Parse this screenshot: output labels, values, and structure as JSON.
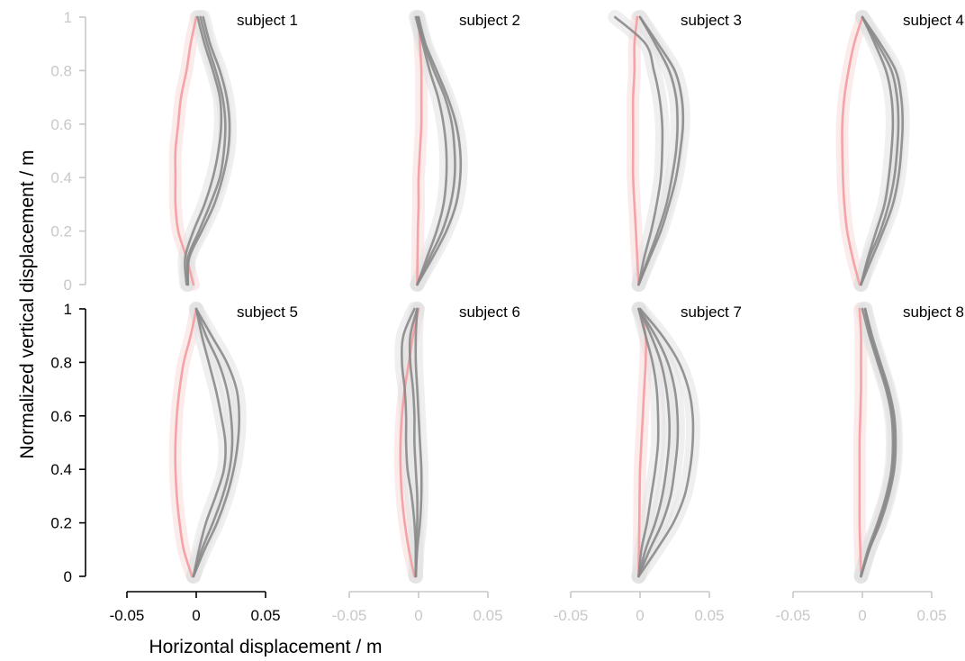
{
  "chart_data": {
    "type": "line",
    "xlabel": "Horizontal displacement / m",
    "ylabel": "Normalized vertical displacement / m",
    "xlim": [
      -0.05,
      0.05
    ],
    "ylim": [
      0,
      1
    ],
    "xticks": [
      "-0.05",
      "0",
      "0.05"
    ],
    "yticks": [
      "0",
      "0.2",
      "0.4",
      "0.6",
      "0.8",
      "1"
    ],
    "layout": "2 rows x 4 panels, shared axes",
    "colors": {
      "pink_trajectory": "#f4a3a6",
      "gray_trajectory": "#8a8a8a",
      "gray_band": "#e2e2e2",
      "pink_band": "#fbe3e3",
      "axis_dark": "#000000",
      "axis_light": "#c8c8c8"
    },
    "panels": [
      {
        "title": "subject 1",
        "pink": {
          "y": [
            0.0,
            0.1,
            0.2,
            0.3,
            0.4,
            0.5,
            0.6,
            0.7,
            0.8,
            0.9,
            1.0
          ],
          "x": [
            -0.002,
            -0.007,
            -0.013,
            -0.015,
            -0.015,
            -0.015,
            -0.013,
            -0.011,
            -0.007,
            -0.004,
            0.0
          ]
        },
        "grays": [
          {
            "y": [
              0.0,
              0.1,
              0.2,
              0.3,
              0.4,
              0.5,
              0.6,
              0.7,
              0.8,
              0.9,
              1.0
            ],
            "x": [
              -0.007,
              -0.008,
              -0.002,
              0.006,
              0.012,
              0.016,
              0.018,
              0.017,
              0.012,
              0.006,
              0.001
            ]
          },
          {
            "y": [
              0.0,
              0.1,
              0.2,
              0.3,
              0.4,
              0.5,
              0.6,
              0.7,
              0.8,
              0.9,
              1.0
            ],
            "x": [
              -0.006,
              -0.006,
              0.002,
              0.01,
              0.017,
              0.02,
              0.021,
              0.019,
              0.014,
              0.008,
              0.003
            ]
          },
          {
            "y": [
              0.0,
              0.1,
              0.2,
              0.3,
              0.4,
              0.5,
              0.6,
              0.7,
              0.8,
              0.9,
              1.0
            ],
            "x": [
              -0.006,
              -0.005,
              0.004,
              0.013,
              0.019,
              0.023,
              0.024,
              0.022,
              0.017,
              0.01,
              0.005
            ]
          }
        ]
      },
      {
        "title": "subject 2",
        "pink": {
          "y": [
            0.0,
            0.1,
            0.2,
            0.3,
            0.4,
            0.5,
            0.6,
            0.7,
            0.8,
            0.9,
            1.0
          ],
          "x": [
            -0.001,
            -0.0008,
            -0.0005,
            0.0,
            0.0,
            0.001,
            0.002,
            0.002,
            0.002,
            0.001,
            0.0
          ]
        },
        "grays": [
          {
            "y": [
              0.0,
              0.1,
              0.2,
              0.3,
              0.4,
              0.5,
              0.6,
              0.7,
              0.8,
              0.9,
              1.0
            ],
            "x": [
              -0.001,
              0.006,
              0.013,
              0.018,
              0.02,
              0.02,
              0.018,
              0.014,
              0.008,
              0.003,
              -0.002
            ]
          },
          {
            "y": [
              0.0,
              0.1,
              0.2,
              0.3,
              0.4,
              0.5,
              0.6,
              0.7,
              0.8,
              0.9,
              1.0
            ],
            "x": [
              -0.001,
              0.008,
              0.017,
              0.023,
              0.026,
              0.026,
              0.024,
              0.019,
              0.011,
              0.004,
              -0.001
            ]
          },
          {
            "y": [
              0.0,
              0.1,
              0.2,
              0.3,
              0.4,
              0.5,
              0.6,
              0.7,
              0.8,
              0.9,
              1.0
            ],
            "x": [
              -0.001,
              0.01,
              0.02,
              0.027,
              0.03,
              0.03,
              0.027,
              0.021,
              0.013,
              0.005,
              0.0
            ]
          }
        ]
      },
      {
        "title": "subject 3",
        "pink": {
          "y": [
            0.0,
            0.1,
            0.2,
            0.3,
            0.4,
            0.5,
            0.6,
            0.7,
            0.8,
            0.9,
            1.0
          ],
          "x": [
            -0.001,
            -0.002,
            -0.003,
            -0.004,
            -0.005,
            -0.005,
            -0.005,
            -0.005,
            -0.004,
            -0.004,
            -0.002
          ]
        },
        "grays": [
          {
            "y": [
              0.0,
              0.1,
              0.2,
              0.3,
              0.4,
              0.5,
              0.6,
              0.7,
              0.8,
              0.9,
              1.0
            ],
            "x": [
              -0.001,
              0.003,
              0.008,
              0.012,
              0.015,
              0.016,
              0.016,
              0.014,
              0.01,
              0.004,
              -0.018
            ]
          },
          {
            "y": [
              0.0,
              0.1,
              0.2,
              0.3,
              0.4,
              0.5,
              0.6,
              0.7,
              0.8,
              0.9,
              1.0
            ],
            "x": [
              -0.001,
              0.006,
              0.013,
              0.019,
              0.023,
              0.026,
              0.027,
              0.026,
              0.021,
              0.011,
              0.0
            ]
          },
          {
            "y": [
              0.0,
              0.1,
              0.2,
              0.3,
              0.4,
              0.5,
              0.6,
              0.7,
              0.8,
              0.9,
              1.0
            ],
            "x": [
              -0.001,
              0.007,
              0.015,
              0.021,
              0.026,
              0.029,
              0.031,
              0.03,
              0.025,
              0.013,
              0.0
            ]
          }
        ]
      },
      {
        "title": "subject 4",
        "pink": {
          "y": [
            0.0,
            0.1,
            0.2,
            0.3,
            0.4,
            0.5,
            0.6,
            0.7,
            0.8,
            0.9,
            1.0
          ],
          "x": [
            -0.002,
            -0.007,
            -0.011,
            -0.013,
            -0.014,
            -0.0145,
            -0.0145,
            -0.013,
            -0.01,
            -0.006,
            0.0
          ]
        },
        "grays": [
          {
            "y": [
              0.0,
              0.1,
              0.2,
              0.3,
              0.4,
              0.5,
              0.6,
              0.7,
              0.8,
              0.9,
              1.0
            ],
            "x": [
              -0.001,
              0.004,
              0.01,
              0.016,
              0.019,
              0.021,
              0.022,
              0.021,
              0.017,
              0.009,
              0.0
            ]
          },
          {
            "y": [
              0.0,
              0.1,
              0.2,
              0.3,
              0.4,
              0.5,
              0.6,
              0.7,
              0.8,
              0.9,
              1.0
            ],
            "x": [
              -0.001,
              0.005,
              0.013,
              0.019,
              0.023,
              0.025,
              0.026,
              0.025,
              0.021,
              0.011,
              0.0
            ]
          },
          {
            "y": [
              0.0,
              0.1,
              0.2,
              0.3,
              0.4,
              0.5,
              0.6,
              0.7,
              0.8,
              0.9,
              1.0
            ],
            "x": [
              -0.001,
              0.007,
              0.015,
              0.022,
              0.026,
              0.028,
              0.029,
              0.028,
              0.024,
              0.013,
              0.0
            ]
          }
        ]
      },
      {
        "title": "subject 5",
        "pink": {
          "y": [
            0.0,
            0.1,
            0.2,
            0.3,
            0.4,
            0.5,
            0.6,
            0.7,
            0.8,
            0.9,
            1.0
          ],
          "x": [
            -0.003,
            -0.009,
            -0.012,
            -0.014,
            -0.015,
            -0.015,
            -0.014,
            -0.012,
            -0.009,
            -0.004,
            0.0
          ]
        },
        "grays": [
          {
            "y": [
              0.0,
              0.1,
              0.2,
              0.3,
              0.4,
              0.5,
              0.6,
              0.7,
              0.8,
              0.9,
              1.0
            ],
            "x": [
              -0.002,
              0.002,
              0.007,
              0.014,
              0.02,
              0.021,
              0.018,
              0.014,
              0.009,
              0.004,
              0.0
            ]
          },
          {
            "y": [
              0.0,
              0.1,
              0.2,
              0.3,
              0.4,
              0.5,
              0.6,
              0.7,
              0.8,
              0.9,
              1.0
            ],
            "x": [
              -0.002,
              0.004,
              0.012,
              0.019,
              0.024,
              0.026,
              0.025,
              0.022,
              0.016,
              0.007,
              0.0
            ]
          },
          {
            "y": [
              0.0,
              0.1,
              0.2,
              0.3,
              0.4,
              0.5,
              0.6,
              0.7,
              0.8,
              0.9,
              1.0
            ],
            "x": [
              -0.002,
              0.006,
              0.015,
              0.022,
              0.027,
              0.03,
              0.031,
              0.029,
              0.022,
              0.011,
              0.0
            ]
          }
        ]
      },
      {
        "title": "subject 6",
        "pink": {
          "y": [
            0.0,
            0.1,
            0.2,
            0.3,
            0.4,
            0.5,
            0.6,
            0.7,
            0.8,
            0.9,
            1.0
          ],
          "x": [
            -0.003,
            -0.007,
            -0.01,
            -0.012,
            -0.013,
            -0.013,
            -0.012,
            -0.01,
            -0.007,
            -0.004,
            0.0
          ]
        },
        "grays": [
          {
            "y": [
              0.0,
              0.1,
              0.2,
              0.3,
              0.4,
              0.5,
              0.6,
              0.7,
              0.8,
              0.9,
              1.0
            ],
            "x": [
              -0.002,
              -0.002,
              -0.003,
              -0.005,
              -0.008,
              -0.009,
              -0.009,
              -0.01,
              -0.012,
              -0.011,
              -0.003
            ]
          },
          {
            "y": [
              0.0,
              0.1,
              0.2,
              0.3,
              0.4,
              0.5,
              0.6,
              0.7,
              0.8,
              0.9,
              1.0
            ],
            "x": [
              -0.002,
              -0.002,
              -0.001,
              -0.001,
              -0.002,
              -0.003,
              -0.003,
              -0.004,
              -0.006,
              -0.006,
              -0.001
            ]
          },
          {
            "y": [
              0.0,
              0.1,
              0.2,
              0.3,
              0.4,
              0.5,
              0.6,
              0.7,
              0.8,
              0.9,
              1.0
            ],
            "x": [
              -0.002,
              -0.001,
              0.001,
              0.002,
              0.002,
              0.001,
              0.0,
              -0.001,
              -0.002,
              -0.002,
              -0.001
            ]
          }
        ]
      },
      {
        "title": "subject 7",
        "pink": {
          "y": [
            0.0,
            0.1,
            0.2,
            0.3,
            0.4,
            0.5,
            0.6,
            0.7,
            0.8,
            0.9,
            1.0
          ],
          "x": [
            -0.001,
            -0.0008,
            -0.0005,
            -0.0003,
            0.0,
            0.001,
            0.002,
            0.003,
            0.004,
            0.004,
            0.0
          ]
        },
        "grays": [
          {
            "y": [
              0.0,
              0.1,
              0.2,
              0.3,
              0.4,
              0.5,
              0.6,
              0.7,
              0.8,
              0.9,
              1.0
            ],
            "x": [
              -0.001,
              0.001,
              0.005,
              0.008,
              0.011,
              0.013,
              0.013,
              0.012,
              0.009,
              0.004,
              -0.001
            ]
          },
          {
            "y": [
              0.0,
              0.1,
              0.2,
              0.3,
              0.4,
              0.5,
              0.6,
              0.7,
              0.8,
              0.9,
              1.0
            ],
            "x": [
              -0.001,
              0.004,
              0.011,
              0.016,
              0.019,
              0.021,
              0.021,
              0.019,
              0.015,
              0.008,
              -0.001
            ]
          },
          {
            "y": [
              0.0,
              0.1,
              0.2,
              0.3,
              0.4,
              0.5,
              0.6,
              0.7,
              0.8,
              0.9,
              1.0
            ],
            "x": [
              -0.001,
              0.007,
              0.016,
              0.022,
              0.025,
              0.027,
              0.027,
              0.025,
              0.02,
              0.011,
              -0.001
            ]
          },
          {
            "y": [
              0.0,
              0.1,
              0.2,
              0.3,
              0.4,
              0.5,
              0.6,
              0.7,
              0.8,
              0.9,
              1.0
            ],
            "x": [
              -0.001,
              0.012,
              0.024,
              0.032,
              0.036,
              0.038,
              0.038,
              0.035,
              0.028,
              0.016,
              0.0
            ]
          }
        ]
      },
      {
        "title": "subject 8",
        "pink": {
          "y": [
            0.0,
            0.1,
            0.2,
            0.3,
            0.4,
            0.5,
            0.6,
            0.7,
            0.8,
            0.9,
            1.0
          ],
          "x": [
            -0.001,
            -0.0015,
            -0.002,
            -0.002,
            -0.002,
            -0.002,
            -0.0015,
            -0.001,
            -0.001,
            -0.001,
            -0.002
          ]
        },
        "grays": [
          {
            "y": [
              0.0,
              0.1,
              0.2,
              0.3,
              0.4,
              0.5,
              0.6,
              0.7,
              0.8,
              0.9,
              1.0
            ],
            "x": [
              -0.001,
              0.004,
              0.011,
              0.017,
              0.021,
              0.022,
              0.021,
              0.017,
              0.011,
              0.005,
              0.0
            ]
          },
          {
            "y": [
              0.0,
              0.1,
              0.2,
              0.3,
              0.4,
              0.5,
              0.6,
              0.7,
              0.8,
              0.9,
              1.0
            ],
            "x": [
              -0.001,
              0.005,
              0.012,
              0.018,
              0.022,
              0.023,
              0.022,
              0.018,
              0.012,
              0.006,
              0.002
            ]
          },
          {
            "y": [
              0.0,
              0.1,
              0.2,
              0.3,
              0.4,
              0.5,
              0.6,
              0.7,
              0.8,
              0.9,
              1.0
            ],
            "x": [
              -0.001,
              0.005,
              0.013,
              0.019,
              0.023,
              0.024,
              0.023,
              0.019,
              0.013,
              0.007,
              0.002
            ]
          }
        ]
      }
    ]
  }
}
